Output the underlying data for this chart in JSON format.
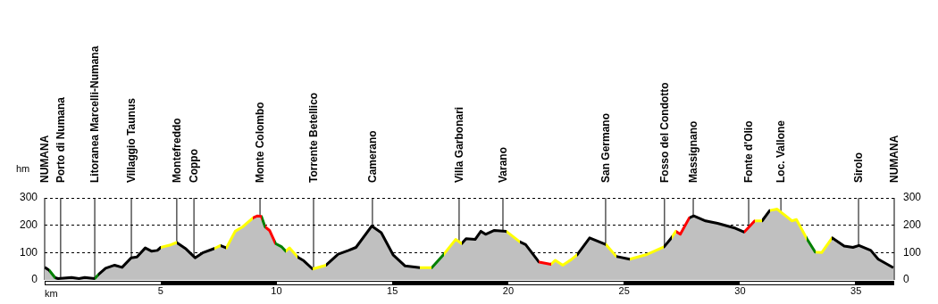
{
  "chart_data": {
    "type": "area",
    "xlabel": "km",
    "ylabel": "hm",
    "xlim": [
      0,
      36.65
    ],
    "xticks": [
      5,
      10,
      15,
      20,
      25,
      30,
      35
    ],
    "ylim": [
      0,
      300
    ],
    "yticks": [
      0,
      100,
      200,
      300
    ],
    "y2lim": [
      0,
      300
    ],
    "y2ticks": [
      0,
      100,
      200,
      300
    ],
    "grid": "y",
    "legend": false,
    "marker": "none",
    "line_style": "solid",
    "x": [
      0,
      0.19,
      0.45,
      0.58,
      1.16,
      1.48,
      1.73,
      2.16,
      2.31,
      2.63,
      3.02,
      3.34,
      3.73,
      3.98,
      4.34,
      4.62,
      4.86,
      5.01,
      5.39,
      5.69,
      6.1,
      6.49,
      6.81,
      7.32,
      7.58,
      7.84,
      8.22,
      8.54,
      8.99,
      9.18,
      9.35,
      9.51,
      9.7,
      9.96,
      10.21,
      10.4,
      10.56,
      10.92,
      11.18,
      11.56,
      12.14,
      12.66,
      13.11,
      13.43,
      14.11,
      14.52,
      15.03,
      15.55,
      16.19,
      16.7,
      17.22,
      17.73,
      17.99,
      18.18,
      18.57,
      18.82,
      19.02,
      19.4,
      19.91,
      20.49,
      20.75,
      21.33,
      21.84,
      22.03,
      22.35,
      22.74,
      22.97,
      23.51,
      24.22,
      24.66,
      25.24,
      25.94,
      26.72,
      27.04,
      27.23,
      27.42,
      27.81,
      28.0,
      28.51,
      29.03,
      29.8,
      30.18,
      30.63,
      30.95,
      31.28,
      31.6,
      32.24,
      32.43,
      32.88,
      33.24,
      33.52,
      33.97,
      34.49,
      34.87,
      35.13,
      35.64,
      35.96,
      36.61
    ],
    "series": [
      {
        "color": "#c0c0c0",
        "values": [
          46,
          36,
          8,
          5,
          9,
          5,
          9,
          5,
          19,
          43,
          54,
          46,
          81,
          84,
          117,
          105,
          108,
          119,
          127,
          137,
          113,
          81,
          99,
          115,
          126,
          117,
          178,
          194,
          227,
          234,
          232,
          194,
          181,
          133,
          122,
          105,
          117,
          83,
          70,
          40,
          54,
          94,
          108,
          119,
          197,
          173,
          92,
          51,
          45,
          45,
          94,
          148,
          133,
          151,
          148,
          178,
          167,
          181,
          178,
          140,
          129,
          65,
          57,
          72,
          54,
          76,
          92,
          154,
          129,
          86,
          76,
          92,
          121,
          154,
          178,
          167,
          227,
          234,
          216,
          207,
          189,
          175,
          216,
          216,
          254,
          259,
          216,
          221,
          151,
          102,
          100,
          154,
          124,
          119,
          126,
          108,
          76,
          45
        ],
        "colors": [
          "#000000",
          "#008000",
          "#000000",
          "#000000",
          "#000000",
          "#000000",
          "#000000",
          "#008000",
          "#000000",
          "#000000",
          "#000000",
          "#000000",
          "#000000",
          "#000000",
          "#000000",
          "#000000",
          "#000000",
          "#ffff00",
          "#ffff00",
          "#000000",
          "#000000",
          "#000000",
          "#000000",
          "#ffff00",
          "#000000",
          "#ffff00",
          "#ffff00",
          "#ffff00",
          "#ff0000",
          "#ff0000",
          "#008000",
          "#ff0000",
          "#ff0000",
          "#008000",
          "#008000",
          "#ffff00",
          "#ffff00",
          "#000000",
          "#000000",
          "#ffff00",
          "#000000",
          "#000000",
          "#000000",
          "#000000",
          "#000000",
          "#000000",
          "#000000",
          "#000000",
          "#ffff00",
          "#008000",
          "#ffff00",
          "#ffff00",
          "#000000",
          "#000000",
          "#000000",
          "#000000",
          "#000000",
          "#000000",
          "#ffff00",
          "#000000",
          "#000000",
          "#ff0000",
          "#ffff00",
          "#ffff00",
          "#ffff00",
          "#ffff00",
          "#000000",
          "#000000",
          "#ffff00",
          "#000000",
          "#ffff00",
          "#ffff00",
          "#000000",
          "#ffff00",
          "#ff0000",
          "#ff0000",
          "#000000",
          "#000000",
          "#000000",
          "#000000",
          "#000000",
          "#ff0000",
          "#ffff00",
          "#000000",
          "#ffff00",
          "#ffff00",
          "#ffff00",
          "#ffff00",
          "#008000",
          "#ffff00",
          "#ffff00",
          "#000000",
          "#000000",
          "#000000",
          "#000000",
          "#000000",
          "#000000",
          "#000000"
        ]
      }
    ],
    "ref_lines": [
      {
        "axis": "x",
        "value": 0,
        "label": "NUMANA",
        "color": "#000000"
      },
      {
        "axis": "x",
        "value": 0.69,
        "label": "Porto di Numana",
        "color": "#000000"
      },
      {
        "axis": "x",
        "value": 2.16,
        "label": "Litoranea Marcelli-Numana",
        "color": "#000000"
      },
      {
        "axis": "x",
        "value": 3.74,
        "label": "Villaggio Taunus",
        "color": "#000000"
      },
      {
        "axis": "x",
        "value": 5.7,
        "label": "Montefreddo",
        "color": "#000000"
      },
      {
        "axis": "x",
        "value": 6.44,
        "label": "Coppo",
        "color": "#000000"
      },
      {
        "axis": "x",
        "value": 9.29,
        "label": "Monte Colombo",
        "color": "#000000"
      },
      {
        "axis": "x",
        "value": 11.6,
        "label": "Torrente Betellico",
        "color": "#000000"
      },
      {
        "axis": "x",
        "value": 14.14,
        "label": "Camerano",
        "color": "#000000"
      },
      {
        "axis": "x",
        "value": 17.88,
        "label": "Villa Garbonari",
        "color": "#000000"
      },
      {
        "axis": "x",
        "value": 19.77,
        "label": "Varano",
        "color": "#000000"
      },
      {
        "axis": "x",
        "value": 24.2,
        "label": "San Germano",
        "color": "#000000"
      },
      {
        "axis": "x",
        "value": 26.74,
        "label": "Fosso del Condotto",
        "color": "#000000"
      },
      {
        "axis": "x",
        "value": 27.98,
        "label": "Massignano",
        "color": "#000000"
      },
      {
        "axis": "x",
        "value": 30.37,
        "label": "Fonte d'Olio",
        "color": "#000000"
      },
      {
        "axis": "x",
        "value": 31.76,
        "label": "Loc. Vallone",
        "color": "#000000"
      },
      {
        "axis": "x",
        "value": 35.11,
        "label": "Sirolo",
        "color": "#000000"
      },
      {
        "axis": "x",
        "value": 36.65,
        "label": "NUMANA",
        "color": "#000000"
      }
    ]
  }
}
